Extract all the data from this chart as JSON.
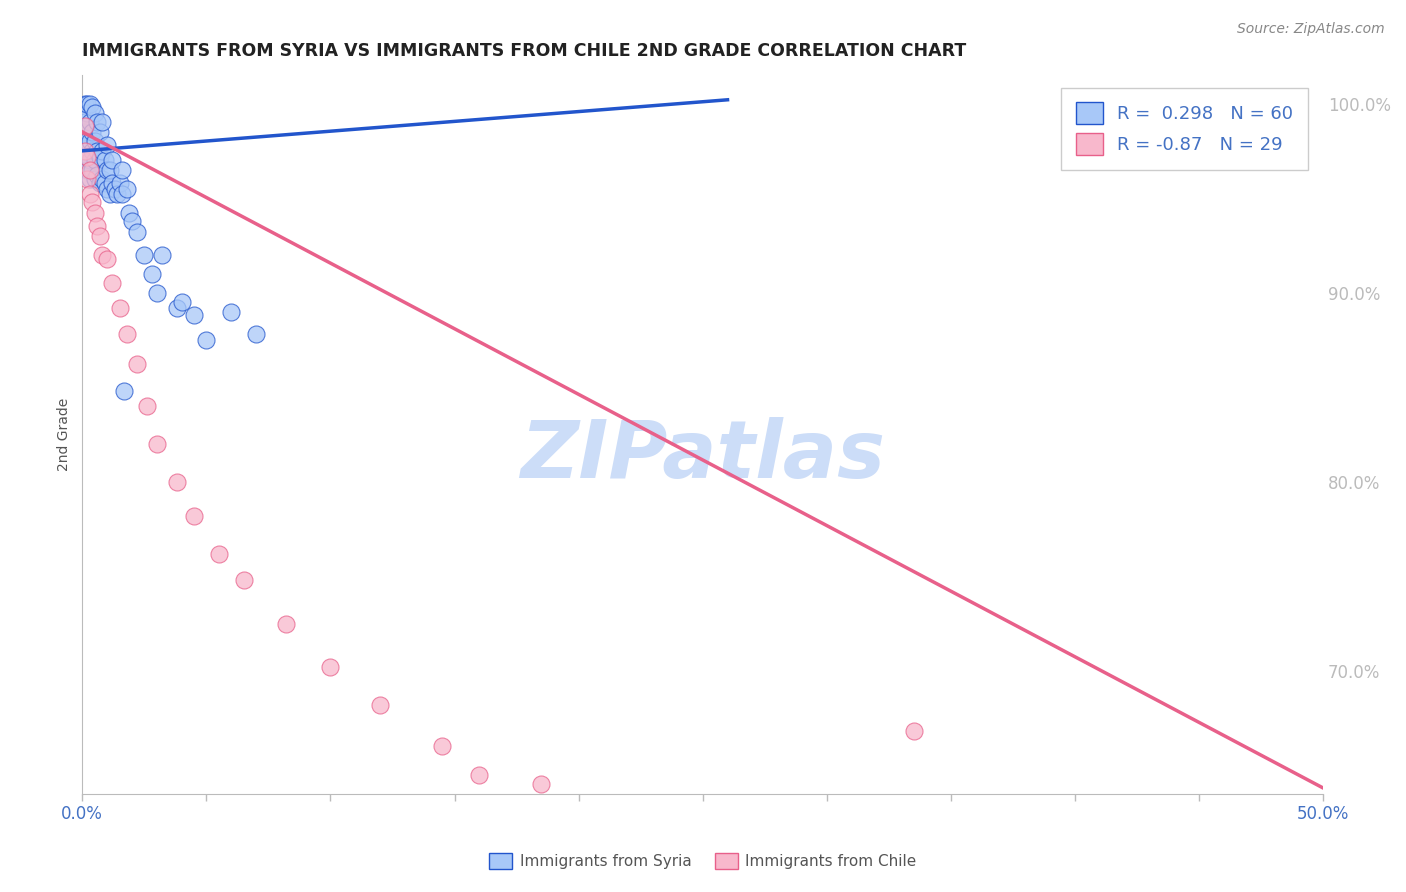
{
  "title": "IMMIGRANTS FROM SYRIA VS IMMIGRANTS FROM CHILE 2ND GRADE CORRELATION CHART",
  "source": "Source: ZipAtlas.com",
  "ylabel": "2nd Grade",
  "xlim": [
    0.0,
    0.5
  ],
  "ylim": [
    0.635,
    1.015
  ],
  "R_syria": 0.298,
  "N_syria": 60,
  "R_chile": -0.87,
  "N_chile": 29,
  "color_syria": "#a8c8f8",
  "color_chile": "#f8b8cc",
  "color_line_syria": "#2255cc",
  "color_line_chile": "#e8608a",
  "watermark": "ZIPatlas",
  "watermark_color": "#ccddf8",
  "grid_color": "#cccccc",
  "syria_line_x0": 0.0,
  "syria_line_x1": 0.26,
  "syria_line_y0": 0.975,
  "syria_line_y1": 1.002,
  "chile_line_x0": 0.0,
  "chile_line_x1": 0.5,
  "chile_line_y0": 0.985,
  "chile_line_y1": 0.638,
  "syria_x": [
    0.0005,
    0.001,
    0.001,
    0.001,
    0.0015,
    0.002,
    0.002,
    0.002,
    0.002,
    0.003,
    0.003,
    0.003,
    0.003,
    0.003,
    0.004,
    0.004,
    0.004,
    0.004,
    0.005,
    0.005,
    0.005,
    0.005,
    0.006,
    0.006,
    0.006,
    0.007,
    0.007,
    0.007,
    0.008,
    0.008,
    0.008,
    0.009,
    0.009,
    0.01,
    0.01,
    0.01,
    0.011,
    0.011,
    0.012,
    0.012,
    0.013,
    0.014,
    0.015,
    0.016,
    0.016,
    0.017,
    0.018,
    0.019,
    0.02,
    0.022,
    0.025,
    0.028,
    0.03,
    0.032,
    0.038,
    0.04,
    0.045,
    0.05,
    0.06,
    0.07
  ],
  "syria_y": [
    0.985,
    0.97,
    0.99,
    1.0,
    0.975,
    0.965,
    0.98,
    0.995,
    1.0,
    0.96,
    0.97,
    0.98,
    0.99,
    1.0,
    0.965,
    0.975,
    0.985,
    0.998,
    0.96,
    0.97,
    0.98,
    0.995,
    0.962,
    0.975,
    0.99,
    0.958,
    0.972,
    0.985,
    0.96,
    0.975,
    0.99,
    0.958,
    0.97,
    0.955,
    0.965,
    0.978,
    0.952,
    0.965,
    0.958,
    0.97,
    0.955,
    0.952,
    0.958,
    0.952,
    0.965,
    0.848,
    0.955,
    0.942,
    0.938,
    0.932,
    0.92,
    0.91,
    0.9,
    0.92,
    0.892,
    0.895,
    0.888,
    0.875,
    0.89,
    0.878
  ],
  "chile_x": [
    0.001,
    0.001,
    0.002,
    0.002,
    0.003,
    0.003,
    0.004,
    0.005,
    0.006,
    0.007,
    0.008,
    0.01,
    0.012,
    0.015,
    0.018,
    0.022,
    0.026,
    0.03,
    0.038,
    0.045,
    0.055,
    0.065,
    0.082,
    0.1,
    0.12,
    0.145,
    0.16,
    0.185,
    0.335
  ],
  "chile_y": [
    0.988,
    0.975,
    0.972,
    0.96,
    0.965,
    0.952,
    0.948,
    0.942,
    0.935,
    0.93,
    0.92,
    0.918,
    0.905,
    0.892,
    0.878,
    0.862,
    0.84,
    0.82,
    0.8,
    0.782,
    0.762,
    0.748,
    0.725,
    0.702,
    0.682,
    0.66,
    0.645,
    0.64,
    0.668
  ]
}
